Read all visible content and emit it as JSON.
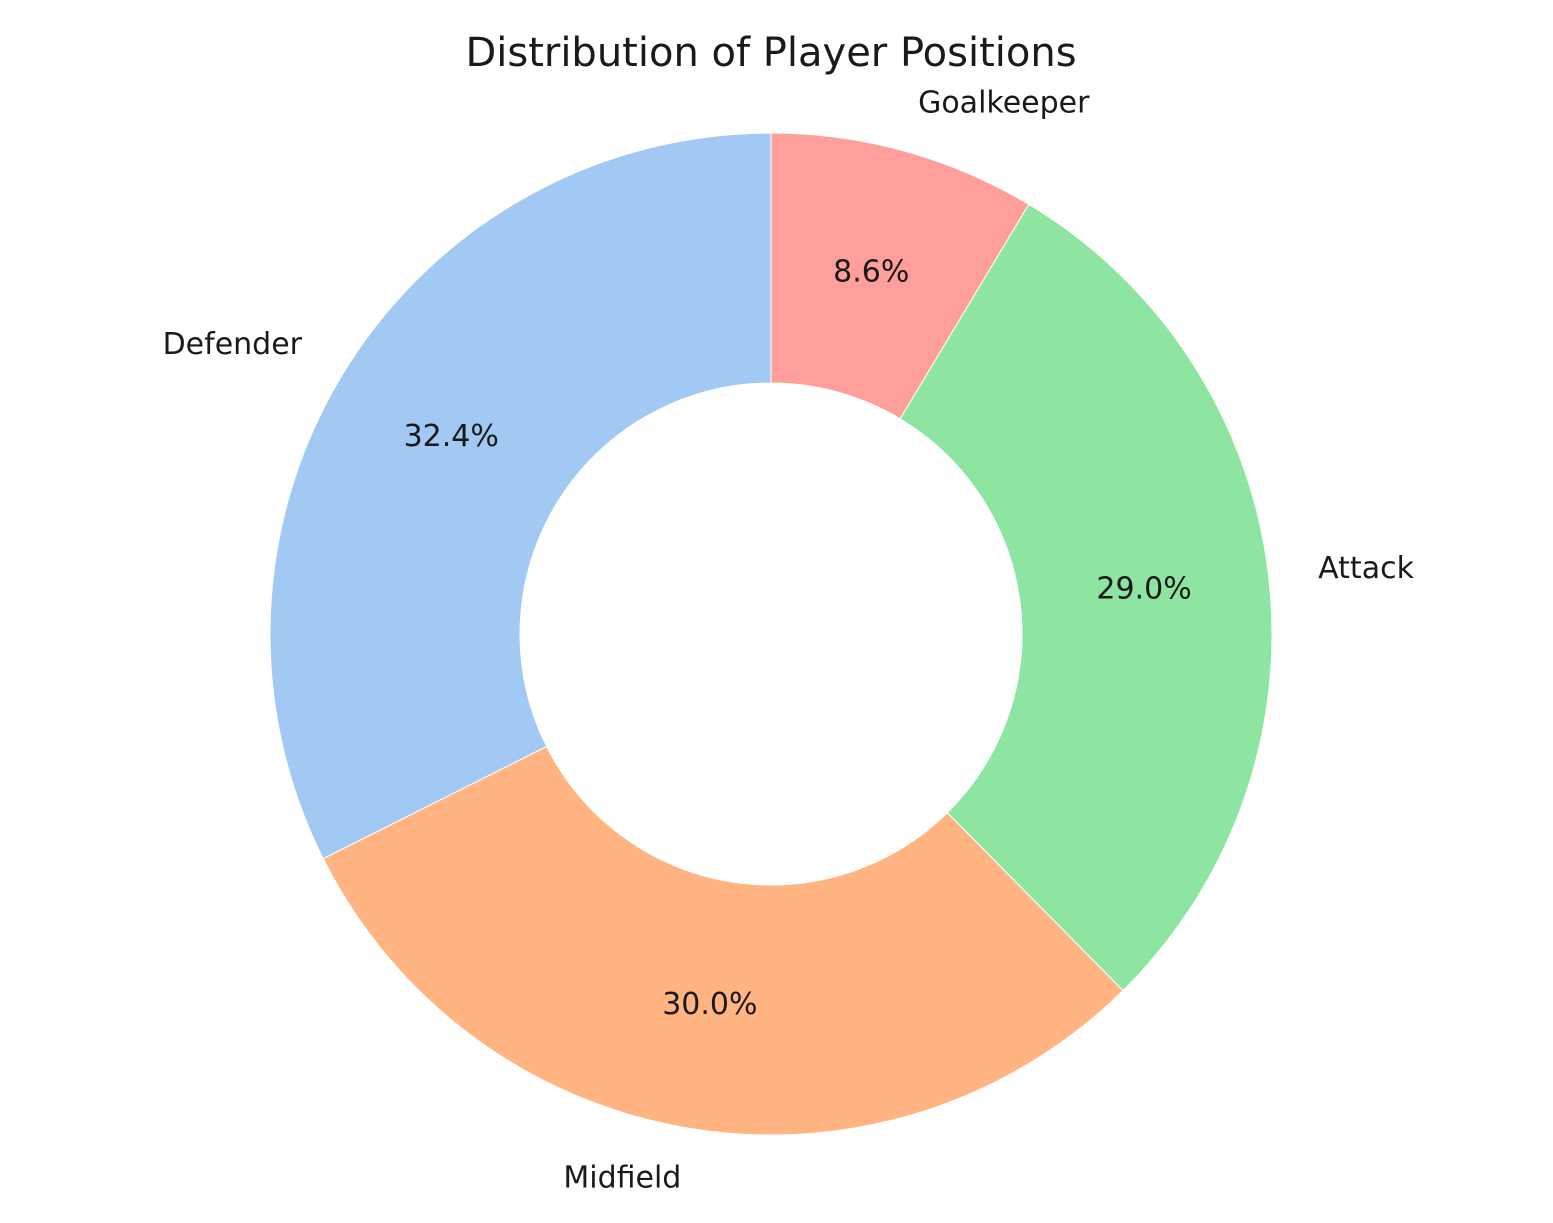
{
  "chart_data": {
    "type": "pie",
    "variant": "donut",
    "title": "Distribution of Player Positions",
    "start_angle_deg": 90,
    "direction": "counterclockwise",
    "legend": "none",
    "slices": [
      {
        "label": "Defender",
        "value": 32.4,
        "display": "32.4%",
        "color": "#a1c9f4"
      },
      {
        "label": "Midfield",
        "value": 30.0,
        "display": "30.0%",
        "color": "#ffb482"
      },
      {
        "label": "Attack",
        "value": 29.0,
        "display": "29.0%",
        "color": "#8de5a1"
      },
      {
        "label": "Goalkeeper",
        "value": 8.6,
        "display": "8.6%",
        "color": "#ff9f9b"
      }
    ]
  }
}
